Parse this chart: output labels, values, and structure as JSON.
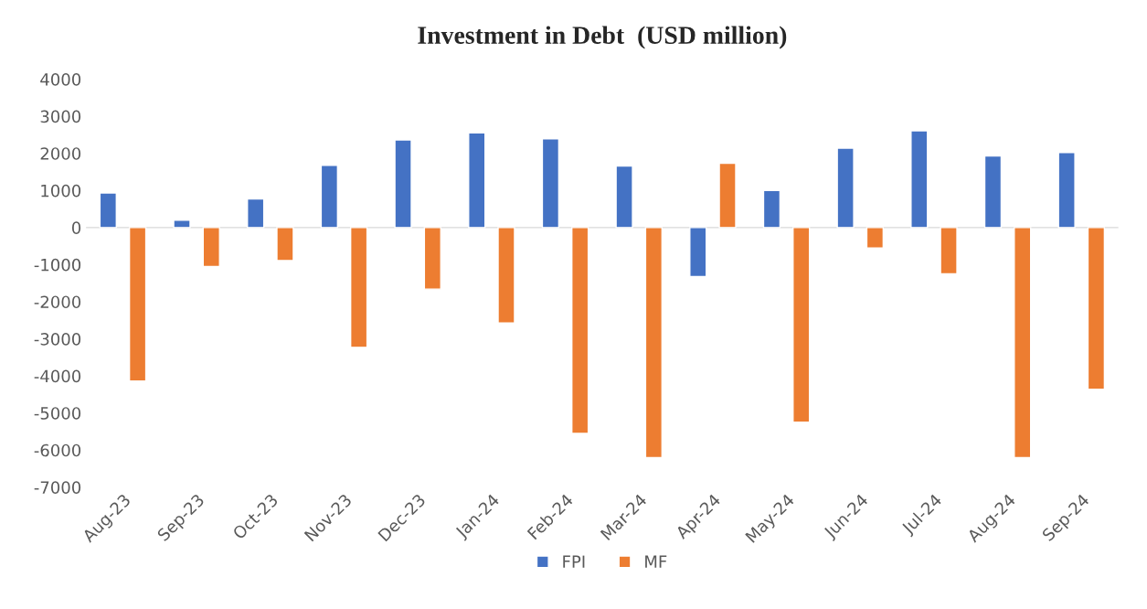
{
  "chart_data": {
    "type": "bar",
    "title": "Investment in Debt  (USD million)",
    "categories": [
      "Aug-23",
      "Sep-23",
      "Oct-23",
      "Nov-23",
      "Dec-23",
      "Jan-24",
      "Feb-24",
      "Mar-24",
      "Apr-24",
      "May-24",
      "Jun-24",
      "Jul-24",
      "Aug-24",
      "Sep-24"
    ],
    "series": [
      {
        "name": "FPI",
        "color": "#4472c4",
        "values": [
          930,
          200,
          770,
          1680,
          2360,
          2550,
          2390,
          1660,
          -1320,
          1000,
          2140,
          2610,
          1930,
          2020
        ]
      },
      {
        "name": "MF",
        "color": "#ed7d31",
        "values": [
          -4140,
          -1050,
          -890,
          -3230,
          -1660,
          -2570,
          -5550,
          -6200,
          1730,
          -5250,
          -550,
          -1250,
          -6200,
          -4360
        ]
      }
    ],
    "ylim": [
      -7000,
      4000
    ],
    "yticks": [
      -7000,
      -6000,
      -5000,
      -4000,
      -3000,
      -2000,
      -1000,
      0,
      1000,
      2000,
      3000,
      4000
    ],
    "ref_lines": [
      {
        "axis": "y",
        "value": 0,
        "color": "#d9d9d9"
      }
    ],
    "grid": false,
    "legend": "bottom"
  }
}
